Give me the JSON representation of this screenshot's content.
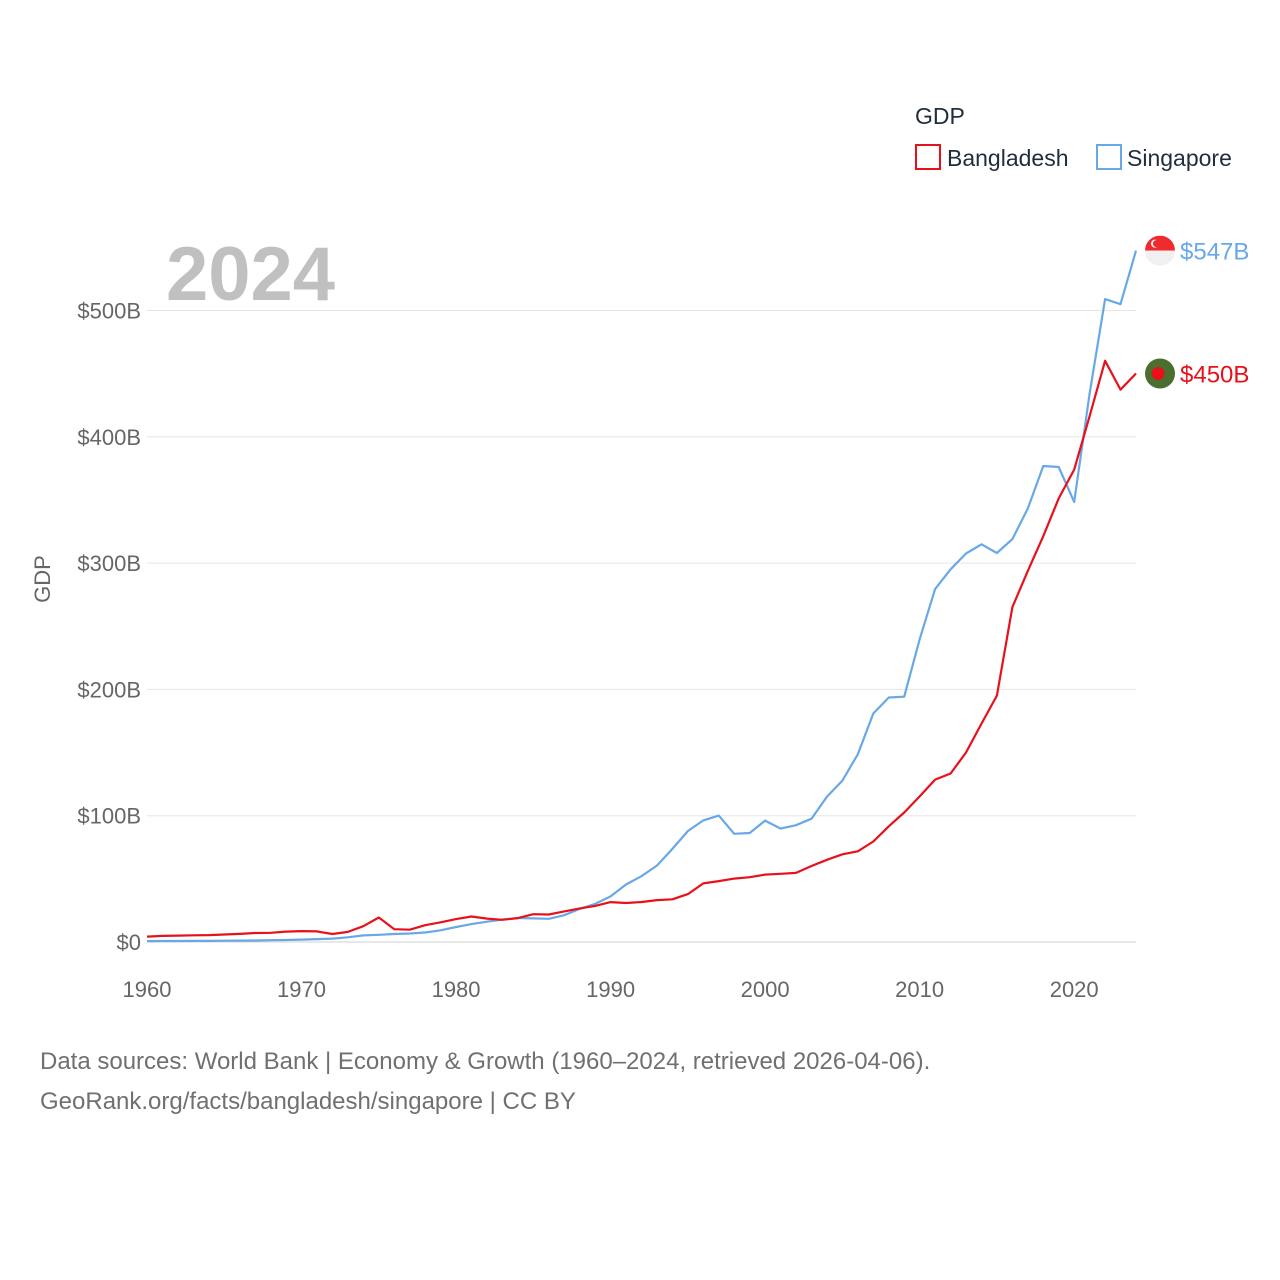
{
  "chart_data": {
    "type": "line",
    "title": "",
    "year_label": "2024",
    "ylabel": "GDP",
    "xlabel": "",
    "xlim": [
      1960,
      2024
    ],
    "ylim": [
      0,
      560
    ],
    "x_ticks": [
      1960,
      1970,
      1980,
      1990,
      2000,
      2010,
      2020
    ],
    "x_tick_labels": [
      "1960",
      "1970",
      "1980",
      "1990",
      "2000",
      "2010",
      "2020"
    ],
    "y_ticks": [
      0,
      100,
      200,
      300,
      400,
      500
    ],
    "y_tick_labels": [
      "$0",
      "$100B",
      "$200B",
      "$300B",
      "$400B",
      "$500B"
    ],
    "grid": true,
    "legend": {
      "title": "GDP",
      "position": "top-right"
    },
    "series": [
      {
        "name": "Bangladesh",
        "color": "#e8101a",
        "end_label": "$450B",
        "flag": "bangladesh-flag",
        "x": [
          1960,
          1961,
          1962,
          1963,
          1964,
          1965,
          1966,
          1967,
          1968,
          1969,
          1970,
          1971,
          1972,
          1973,
          1974,
          1975,
          1976,
          1977,
          1978,
          1979,
          1980,
          1981,
          1982,
          1983,
          1984,
          1985,
          1986,
          1987,
          1988,
          1989,
          1990,
          1991,
          1992,
          1993,
          1994,
          1995,
          1996,
          1997,
          1998,
          1999,
          2000,
          2001,
          2002,
          2003,
          2004,
          2005,
          2006,
          2007,
          2008,
          2009,
          2010,
          2011,
          2012,
          2013,
          2014,
          2015,
          2016,
          2017,
          2018,
          2019,
          2020,
          2021,
          2022,
          2023,
          2024
        ],
        "values": [
          4.3,
          4.8,
          5.1,
          5.3,
          5.5,
          5.9,
          6.4,
          7.1,
          7.3,
          8.2,
          8.6,
          8.4,
          6.3,
          8.0,
          12.5,
          19.4,
          10.1,
          9.7,
          13.3,
          15.6,
          18.1,
          20.2,
          18.5,
          17.6,
          18.9,
          22.0,
          21.8,
          24.2,
          26.6,
          28.6,
          31.6,
          30.9,
          31.7,
          33.2,
          33.8,
          37.9,
          46.4,
          48.2,
          50.2,
          51.3,
          53.4,
          54.0,
          54.7,
          60.2,
          65.1,
          69.4,
          71.8,
          79.6,
          91.6,
          102.5,
          115.3,
          128.6,
          133.4,
          150.0,
          172.9,
          195.1,
          265.2,
          293.8,
          321.4,
          351.2,
          374.0,
          416.3,
          460.2,
          437.4,
          450.1
        ]
      },
      {
        "name": "Singapore",
        "color": "#69a8e6",
        "end_label": "$547B",
        "flag": "singapore-flag",
        "x": [
          1960,
          1961,
          1962,
          1963,
          1964,
          1965,
          1966,
          1967,
          1968,
          1969,
          1970,
          1971,
          1972,
          1973,
          1974,
          1975,
          1976,
          1977,
          1978,
          1979,
          1980,
          1981,
          1982,
          1983,
          1984,
          1985,
          1986,
          1987,
          1988,
          1989,
          1990,
          1991,
          1992,
          1993,
          1994,
          1995,
          1996,
          1997,
          1998,
          1999,
          2000,
          2001,
          2002,
          2003,
          2004,
          2005,
          2006,
          2007,
          2008,
          2009,
          2010,
          2011,
          2012,
          2013,
          2014,
          2015,
          2016,
          2017,
          2018,
          2019,
          2020,
          2021,
          2022,
          2023,
          2024
        ],
        "values": [
          0.7,
          0.8,
          0.8,
          0.9,
          0.9,
          1.0,
          1.1,
          1.2,
          1.4,
          1.6,
          1.9,
          2.3,
          2.7,
          3.7,
          5.2,
          5.7,
          6.3,
          6.7,
          7.5,
          9.3,
          11.9,
          14.2,
          16.1,
          17.8,
          19.0,
          18.7,
          18.4,
          21.2,
          26.2,
          30.2,
          36.1,
          45.5,
          52.1,
          60.6,
          73.7,
          87.9,
          96.3,
          100.1,
          85.7,
          86.3,
          96.1,
          89.8,
          92.5,
          97.6,
          115.0,
          127.8,
          148.6,
          180.9,
          193.6,
          194.2,
          239.8,
          279.4,
          295.1,
          307.6,
          314.9,
          308.0,
          319.0,
          343.2,
          376.9,
          376.1,
          348.4,
          434.1,
          509.0,
          505.0,
          547.4
        ]
      }
    ]
  },
  "source": {
    "line1": "Data sources: World Bank | Economy & Growth (1960–2024, retrieved 2026-04-06).",
    "line2": "GeoRank.org/facts/bangladesh/singapore | CC BY"
  }
}
